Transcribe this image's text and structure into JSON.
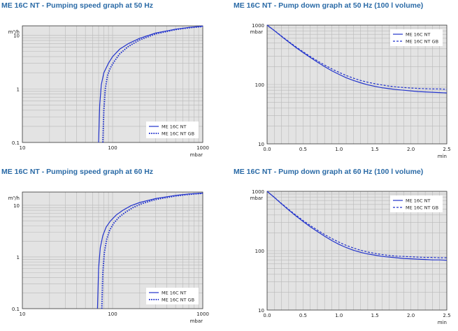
{
  "colors": {
    "title": "#2a6aa6",
    "series": "#2233cc",
    "plot_bg": "#e3e3e3",
    "grid": "#b9b9b9",
    "axis": "#333333"
  },
  "chart_data": [
    {
      "type": "line",
      "title": "ME 16C NT - Pumping speed graph at 50 Hz",
      "xlabel": "mbar",
      "ylabel": "m³/h",
      "xscale": "log",
      "yscale": "log",
      "xlim": [
        10,
        1000
      ],
      "ylim": [
        0.1,
        15
      ],
      "xticks": [
        "10",
        "100",
        "1000"
      ],
      "yticks": [
        "0.1",
        "1",
        "10"
      ],
      "legend_position": "bottom-right",
      "grid": true,
      "series": [
        {
          "name": "ME 16C NT",
          "style": "solid",
          "x": [
            70,
            72,
            75,
            80,
            90,
            100,
            120,
            150,
            200,
            300,
            500,
            700,
            1000
          ],
          "y": [
            0.1,
            0.5,
            1.2,
            2.0,
            3.0,
            4.0,
            5.5,
            7.0,
            8.8,
            11.0,
            13.0,
            14.0,
            14.8
          ]
        },
        {
          "name": "ME 16C NT GB",
          "style": "dotted",
          "x": [
            78,
            80,
            83,
            88,
            95,
            105,
            120,
            150,
            200,
            300,
            500,
            700,
            1000
          ],
          "y": [
            0.1,
            0.4,
            1.0,
            1.8,
            2.5,
            3.3,
            4.5,
            6.2,
            8.2,
            10.6,
            12.8,
            13.8,
            14.6
          ]
        }
      ]
    },
    {
      "type": "line",
      "title": "ME 16C NT - Pump down graph at 50 Hz (100 l volume)",
      "xlabel": "min",
      "ylabel": "mbar",
      "xscale": "linear",
      "yscale": "log",
      "xlim": [
        0,
        2.5
      ],
      "ylim": [
        10,
        1000
      ],
      "xticks": [
        "0.0",
        "0.5",
        "1.0",
        "1.5",
        "2.0",
        "2.5"
      ],
      "yticks": [
        "10",
        "100",
        "1000"
      ],
      "legend_position": "top-right",
      "grid": true,
      "series": [
        {
          "name": "ME 16C NT",
          "style": "solid",
          "x": [
            0,
            0.1,
            0.2,
            0.3,
            0.4,
            0.5,
            0.6,
            0.7,
            0.8,
            0.9,
            1.0,
            1.1,
            1.2,
            1.3,
            1.4,
            1.5,
            1.6,
            1.7,
            1.8,
            1.9,
            2.0,
            2.1,
            2.2,
            2.3,
            2.4,
            2.5
          ],
          "y": [
            1000,
            810,
            645,
            520,
            420,
            345,
            285,
            238,
            200,
            170,
            148,
            130,
            117,
            107,
            99,
            93,
            88,
            85,
            82,
            80,
            78,
            76,
            75,
            74,
            73,
            72
          ]
        },
        {
          "name": "ME 16C NT GB",
          "style": "dashed",
          "x": [
            0,
            0.1,
            0.2,
            0.3,
            0.4,
            0.5,
            0.6,
            0.7,
            0.8,
            0.9,
            1.0,
            1.1,
            1.2,
            1.3,
            1.4,
            1.5,
            1.6,
            1.7,
            1.8,
            1.9,
            2.0,
            2.1,
            2.2,
            2.3,
            2.4,
            2.5
          ],
          "y": [
            1000,
            815,
            655,
            530,
            432,
            356,
            296,
            250,
            213,
            183,
            160,
            142,
            128,
            117,
            109,
            103,
            98,
            94,
            91,
            89,
            87,
            86,
            85,
            84,
            84,
            83
          ]
        }
      ]
    },
    {
      "type": "line",
      "title": "ME 16C NT - Pumping speed graph at 60 Hz",
      "xlabel": "mbar",
      "ylabel": "m³/h",
      "xscale": "log",
      "yscale": "log",
      "xlim": [
        10,
        1000
      ],
      "ylim": [
        0.1,
        18
      ],
      "xticks": [
        "10",
        "100",
        "1000"
      ],
      "yticks": [
        "0.1",
        "1",
        "10"
      ],
      "legend_position": "bottom-right",
      "grid": true,
      "series": [
        {
          "name": "ME 16C NT",
          "style": "solid",
          "x": [
            68,
            70,
            73,
            78,
            85,
            95,
            110,
            130,
            160,
            200,
            300,
            500,
            700,
            1000
          ],
          "y": [
            0.1,
            0.6,
            1.5,
            2.6,
            3.8,
            5.0,
            6.5,
            8.0,
            9.8,
            11.3,
            13.5,
            15.5,
            16.5,
            17.2
          ]
        },
        {
          "name": "ME 16C NT GB",
          "style": "dotted",
          "x": [
            76,
            78,
            81,
            86,
            93,
            103,
            118,
            140,
            170,
            210,
            300,
            500,
            700,
            1000
          ],
          "y": [
            0.1,
            0.5,
            1.2,
            2.2,
            3.3,
            4.5,
            5.9,
            7.4,
            9.1,
            10.7,
            12.9,
            15.1,
            16.2,
            17.0
          ]
        }
      ]
    },
    {
      "type": "line",
      "title": "ME 16C NT - Pump down graph at 60 Hz (100 l volume)",
      "xlabel": "min",
      "ylabel": "mbar",
      "xscale": "linear",
      "yscale": "log",
      "xlim": [
        0,
        2.5
      ],
      "ylim": [
        10,
        1000
      ],
      "xticks": [
        "0.0",
        "0.5",
        "1.0",
        "1.5",
        "2.0",
        "2.5"
      ],
      "yticks": [
        "10",
        "100",
        "1000"
      ],
      "legend_position": "top-right",
      "grid": true,
      "series": [
        {
          "name": "ME 16C NT",
          "style": "solid",
          "x": [
            0,
            0.1,
            0.2,
            0.3,
            0.4,
            0.5,
            0.6,
            0.7,
            0.8,
            0.9,
            1.0,
            1.1,
            1.2,
            1.3,
            1.4,
            1.5,
            1.6,
            1.7,
            1.8,
            1.9,
            2.0,
            2.1,
            2.2,
            2.3,
            2.4,
            2.5
          ],
          "y": [
            1000,
            790,
            615,
            485,
            385,
            310,
            253,
            210,
            175,
            148,
            128,
            113,
            102,
            94,
            88,
            84,
            80,
            78,
            76,
            74,
            73,
            72,
            71,
            70,
            70,
            69
          ]
        },
        {
          "name": "ME 16C NT GB",
          "style": "dashed",
          "x": [
            0,
            0.1,
            0.2,
            0.3,
            0.4,
            0.5,
            0.6,
            0.7,
            0.8,
            0.9,
            1.0,
            1.1,
            1.2,
            1.3,
            1.4,
            1.5,
            1.6,
            1.7,
            1.8,
            1.9,
            2.0,
            2.1,
            2.2,
            2.3,
            2.4,
            2.5
          ],
          "y": [
            1000,
            795,
            625,
            497,
            398,
            323,
            266,
            222,
            187,
            160,
            139,
            123,
            111,
            102,
            95,
            90,
            86,
            83,
            81,
            80,
            79,
            78,
            77,
            77,
            76,
            76
          ]
        }
      ]
    }
  ]
}
